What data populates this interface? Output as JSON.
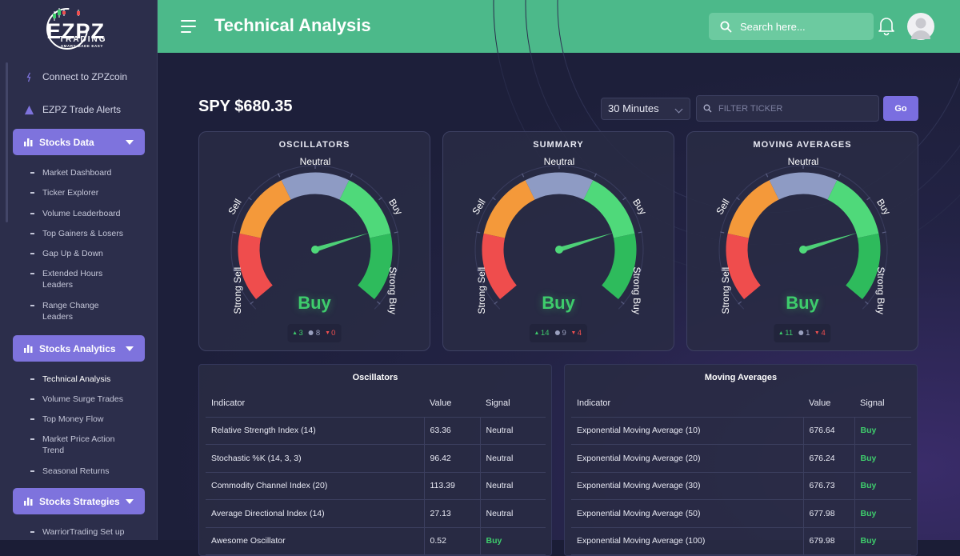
{
  "brand": {
    "logo_main": "EZPZ",
    "logo_sub": "TRADING",
    "tagline": "SMART MADE EASY"
  },
  "sidebar": {
    "links": [
      {
        "label": "Connect to ZPZcoin",
        "icon": "coin-icon"
      },
      {
        "label": "EZPZ Trade Alerts",
        "icon": "alert-triangle-icon"
      }
    ],
    "groups": [
      {
        "label": "Stocks Data",
        "items": [
          "Market Dashboard",
          "Ticker Explorer",
          "Volume Leaderboard",
          "Top Gainers & Losers",
          "Gap Up & Down",
          "Extended Hours Leaders",
          "Range Change Leaders"
        ]
      },
      {
        "label": "Stocks Analytics",
        "items": [
          "Technical Analysis",
          "Volume Surge Trades",
          "Top Money Flow",
          "Market Price Action Trend",
          "Seasonal Returns"
        ]
      },
      {
        "label": "Stocks Strategies",
        "items": [
          "WarriorTrading Set up"
        ]
      }
    ]
  },
  "header": {
    "title": "Technical Analysis",
    "search_placeholder": "Search here..."
  },
  "toolbar": {
    "ticker": "SPY",
    "price": "$680.35",
    "timeframe": "30 Minutes",
    "filter_placeholder": "FILTER TICKER",
    "go_label": "Go"
  },
  "gauge_labels": {
    "strong_sell": "Strong Sell",
    "sell": "Sell",
    "neutral": "Neutral",
    "buy": "Buy",
    "strong_buy": "Strong Buy"
  },
  "colors": {
    "strong_sell": "#ef4d4d",
    "sell": "#f4993a",
    "neutral": "#8e9bc4",
    "buy": "#4fd97a",
    "strong_buy": "#2ebb5c",
    "accent": "#7e73dd",
    "header": "#4cb98a"
  },
  "gauges": [
    {
      "title": "OSCILLATORS",
      "verdict": "Buy",
      "buy": "3",
      "neutral": "8",
      "sell": "0",
      "needle_level": 0.78
    },
    {
      "title": "SUMMARY",
      "verdict": "Buy",
      "buy": "14",
      "neutral": "9",
      "sell": "4",
      "needle_level": 0.78
    },
    {
      "title": "MOVING AVERAGES",
      "verdict": "Buy",
      "buy": "11",
      "neutral": "1",
      "sell": "4",
      "needle_level": 0.78
    }
  ],
  "oscillators_table": {
    "title": "Oscillators",
    "headers": [
      "Indicator",
      "Value",
      "Signal"
    ],
    "rows": [
      [
        "Relative Strength Index (14)",
        "63.36",
        "Neutral"
      ],
      [
        "Stochastic %K (14, 3, 3)",
        "96.42",
        "Neutral"
      ],
      [
        "Commodity Channel Index (20)",
        "113.39",
        "Neutral"
      ],
      [
        "Average Directional Index (14)",
        "27.13",
        "Neutral"
      ],
      [
        "Awesome Oscillator",
        "0.52",
        "Buy"
      ]
    ]
  },
  "ma_table": {
    "title": "Moving Averages",
    "headers": [
      "Indicator",
      "Value",
      "Signal"
    ],
    "rows": [
      [
        "Exponential Moving Average (10)",
        "676.64",
        "Buy"
      ],
      [
        "Exponential Moving Average (20)",
        "676.24",
        "Buy"
      ],
      [
        "Exponential Moving Average (30)",
        "676.73",
        "Buy"
      ],
      [
        "Exponential Moving Average (50)",
        "677.98",
        "Buy"
      ],
      [
        "Exponential Moving Average (100)",
        "679.98",
        "Buy"
      ]
    ]
  }
}
